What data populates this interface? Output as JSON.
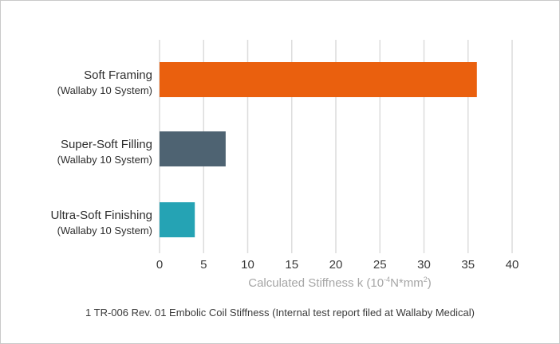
{
  "chart_data": {
    "type": "bar",
    "orientation": "horizontal",
    "categories": [
      {
        "label": "Soft Framing",
        "sublabel": "(Wallaby 10 System)"
      },
      {
        "label": "Super-Soft Filling",
        "sublabel": "(Wallaby 10 System)"
      },
      {
        "label": "Ultra-Soft Finishing",
        "sublabel": "(Wallaby 10 System)"
      }
    ],
    "values": [
      36,
      7.5,
      4
    ],
    "colors": [
      "#ea600e",
      "#4e6372",
      "#25a3b4"
    ],
    "xlabel_prefix": "Calculated Stiffness k  (10",
    "xlabel_exp": "-4",
    "xlabel_mid": "N*mm",
    "xlabel_exp2": "2",
    "xlabel_suffix": ")",
    "xlim": [
      0,
      40
    ],
    "xticks": [
      0,
      5,
      10,
      15,
      20,
      25,
      30,
      35,
      40
    ],
    "grid": true
  },
  "footnote": "1 TR-006 Rev. 01 Embolic Coil Stiffness (Internal test report filed at Wallaby Medical)"
}
